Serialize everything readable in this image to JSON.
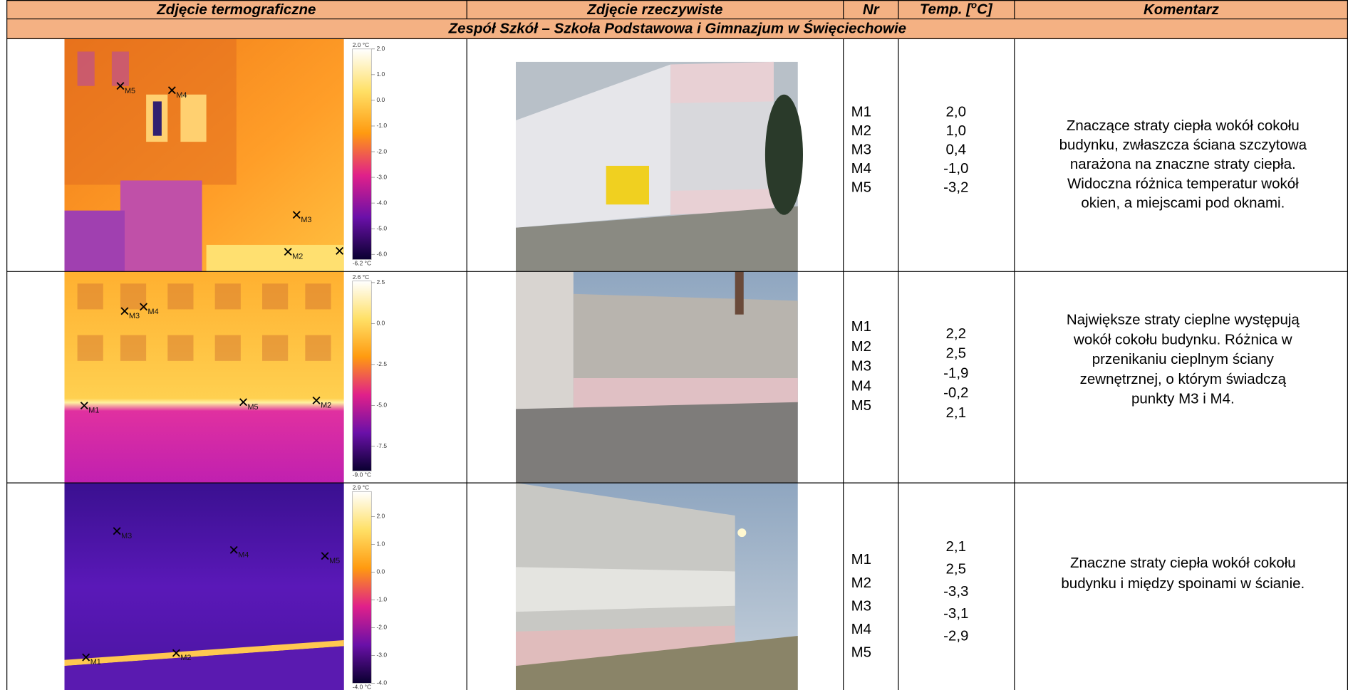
{
  "table": {
    "header": {
      "thermal": "Zdjęcie termograficzne",
      "photo": "Zdjęcie rzeczywiste",
      "nr": "Nr",
      "temp": {
        "text": "Temp. [",
        "sup": "o",
        "unit": "C]"
      },
      "comment": "Komentarz"
    },
    "section": "Zespół Szkół – Szkoła Podstawowa i Gimnazjum w Święciechowie",
    "rows": [
      {
        "points": [
          "M1",
          "M2",
          "M3",
          "M4",
          "M5"
        ],
        "temps": [
          "2,0",
          "1,0",
          "0,4",
          "-1,0",
          "-3,2"
        ],
        "comment": [
          "Znaczące straty ciepła wokół cokołu",
          "budynku, zwłaszcza ściana szczytowa",
          "narażona na znaczne straty ciepła.",
          "Widoczna różnica temperatur wokół",
          "okien, a miejscami pod oknami."
        ],
        "thermal": {
          "max": "2.0 °C",
          "min": "-6.2 °C",
          "scale": [
            "2.0",
            "1.0",
            "0.0",
            "-1.0",
            "-2.0",
            "-3.0",
            "-4.0",
            "-5.0",
            "-6.0"
          ],
          "markers": [
            "M5",
            "M4",
            "M3",
            "M2"
          ]
        }
      },
      {
        "points": [
          "M1",
          "M2",
          "M3",
          "M4",
          "M5"
        ],
        "temps": [
          "2,2",
          "2,5",
          "-1,9",
          "-0,2",
          "2,1"
        ],
        "comment": [
          "Największe straty cieplne występują",
          "wokół cokołu budynku. Różnica w",
          "przenikaniu cieplnym ściany",
          "zewnętrznej, o którym świadczą",
          "punkty M3 i M4."
        ],
        "thermal": {
          "max": "2.6 °C",
          "min": "-9.0 °C",
          "scale": [
            "2.5",
            "0.0",
            "-2.5",
            "-5.0",
            "-7.5"
          ],
          "markers": [
            "M3",
            "M4",
            "M1",
            "M5",
            "M2"
          ]
        }
      },
      {
        "points": [
          "M1",
          "M2",
          "M3",
          "M4",
          "M5"
        ],
        "temps": [
          "2,1",
          "2,5",
          "-3,3",
          "-3,1",
          "-2,9"
        ],
        "comment": [
          "Znaczne straty ciepła wokół cokołu",
          "budynku i między spoinami w ścianie."
        ],
        "thermal": {
          "max": "2.9 °C",
          "min": "-4.0 °C",
          "scale": [
            "2.0",
            "1.0",
            "0.0",
            "-1.0",
            "-2.0",
            "-3.0",
            "-4.0"
          ],
          "markers": [
            "M3",
            "M4",
            "M5",
            "M1",
            "M2"
          ]
        }
      }
    ]
  }
}
